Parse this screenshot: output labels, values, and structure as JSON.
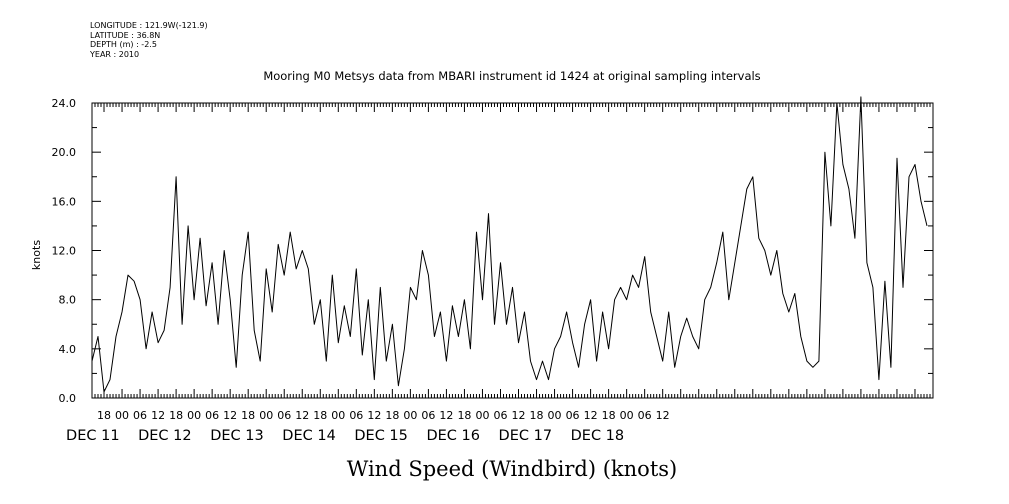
{
  "meta": {
    "longitude": "LONGITUDE : 121.9W(-121.9)",
    "latitude": "LATITUDE : 36.8N",
    "depth": "DEPTH (m) : -2.5",
    "year": "YEAR : 2010"
  },
  "chart_data": {
    "type": "line",
    "title": "Mooring M0 Metsys data from MBARI instrument id 1424 at original sampling intervals",
    "xlabel": "Wind Speed (Windbird) (knots)",
    "ylabel": "knots",
    "ylim": [
      0,
      24
    ],
    "xlim_hours": [
      -10,
      270
    ],
    "y_ticks": [
      "0.0",
      "4.0",
      "8.0",
      "12.0",
      "16.0",
      "20.0",
      "24.0"
    ],
    "x_hour_labels": [
      "18",
      "00",
      "06",
      "12",
      "18",
      "00",
      "06",
      "12",
      "18",
      "00",
      "06",
      "12",
      "18",
      "00",
      "06",
      "12",
      "18",
      "00",
      "06",
      "12",
      "18",
      "00",
      "06",
      "12",
      "18",
      "00",
      "06",
      "12",
      "18",
      "00",
      "06",
      "12"
    ],
    "day_labels": [
      "DEC 11",
      "DEC 12",
      "DEC 13",
      "DEC 14",
      "DEC 15",
      "DEC 16",
      "DEC 17",
      "DEC 18"
    ],
    "grid": false,
    "series": [
      {
        "x": [
          -10,
          -8,
          -6,
          -4,
          -2,
          0,
          2,
          4,
          6,
          8,
          10,
          12,
          14,
          16,
          18,
          20,
          22,
          24,
          26,
          28,
          30,
          32,
          34,
          36,
          38,
          40,
          42,
          44,
          46,
          48,
          50,
          52,
          54,
          56,
          58,
          60,
          62,
          64,
          66,
          68,
          70,
          72,
          74,
          76,
          78,
          80,
          82,
          84,
          86,
          88,
          90,
          92,
          94,
          96,
          98,
          100,
          102,
          104,
          106,
          108,
          110,
          112,
          114,
          116,
          118,
          120,
          122,
          124,
          126,
          128,
          130,
          132,
          134,
          136,
          138,
          140,
          142,
          144,
          146,
          148,
          150,
          152,
          154,
          156,
          158,
          160,
          162,
          164,
          166,
          168,
          170,
          172,
          174,
          176,
          178,
          180,
          182,
          184,
          186,
          188,
          190,
          192,
          194,
          196,
          198,
          200,
          202,
          204,
          206,
          208,
          210,
          212,
          214,
          216,
          218,
          220,
          222,
          224,
          226,
          228,
          230,
          232,
          234,
          236,
          238,
          240,
          242,
          244,
          246,
          248,
          250,
          252,
          254,
          256,
          258,
          260,
          262,
          264,
          266,
          268
        ],
        "y": [
          3.0,
          5.0,
          0.5,
          1.5,
          5.0,
          7.0,
          10.0,
          9.5,
          8.0,
          4.0,
          7.0,
          4.5,
          5.5,
          9.0,
          18.0,
          6.0,
          14.0,
          8.0,
          13.0,
          7.5,
          11.0,
          6.0,
          12.0,
          8.0,
          2.5,
          10.0,
          13.5,
          5.5,
          3.0,
          10.5,
          7.0,
          12.5,
          10.0,
          13.5,
          10.5,
          12.0,
          10.5,
          6.0,
          8.0,
          3.0,
          10.0,
          4.5,
          7.5,
          5.0,
          10.5,
          3.5,
          8.0,
          1.5,
          9.0,
          3.0,
          6.0,
          1.0,
          4.0,
          9.0,
          8.0,
          12.0,
          10.0,
          5.0,
          7.0,
          3.0,
          7.5,
          5.0,
          8.0,
          4.0,
          13.5,
          8.0,
          15.0,
          6.0,
          11.0,
          6.0,
          9.0,
          4.5,
          7.0,
          3.0,
          1.5,
          3.0,
          1.5,
          4.0,
          5.0,
          7.0,
          4.5,
          2.5,
          6.0,
          8.0,
          3.0,
          7.0,
          4.0,
          8.0,
          9.0,
          8.0,
          10.0,
          9.0,
          11.5,
          7.0,
          5.0,
          3.0,
          7.0,
          2.5,
          5.0,
          6.5,
          5.0,
          4.0,
          8.0,
          9.0,
          11.0,
          13.5,
          8.0,
          11.0,
          14.0,
          17.0,
          18.0,
          13.0,
          12.0,
          10.0,
          12.0,
          8.5,
          7.0,
          8.5,
          5.0,
          3.0,
          2.5,
          3.0,
          20.0,
          14.0,
          24.0,
          19.0,
          17.0,
          13.0,
          24.5,
          11.0,
          9.0,
          1.5,
          9.5,
          2.5,
          19.5,
          9.0,
          18.0,
          19.0,
          16.0,
          14.0
        ]
      }
    ]
  }
}
